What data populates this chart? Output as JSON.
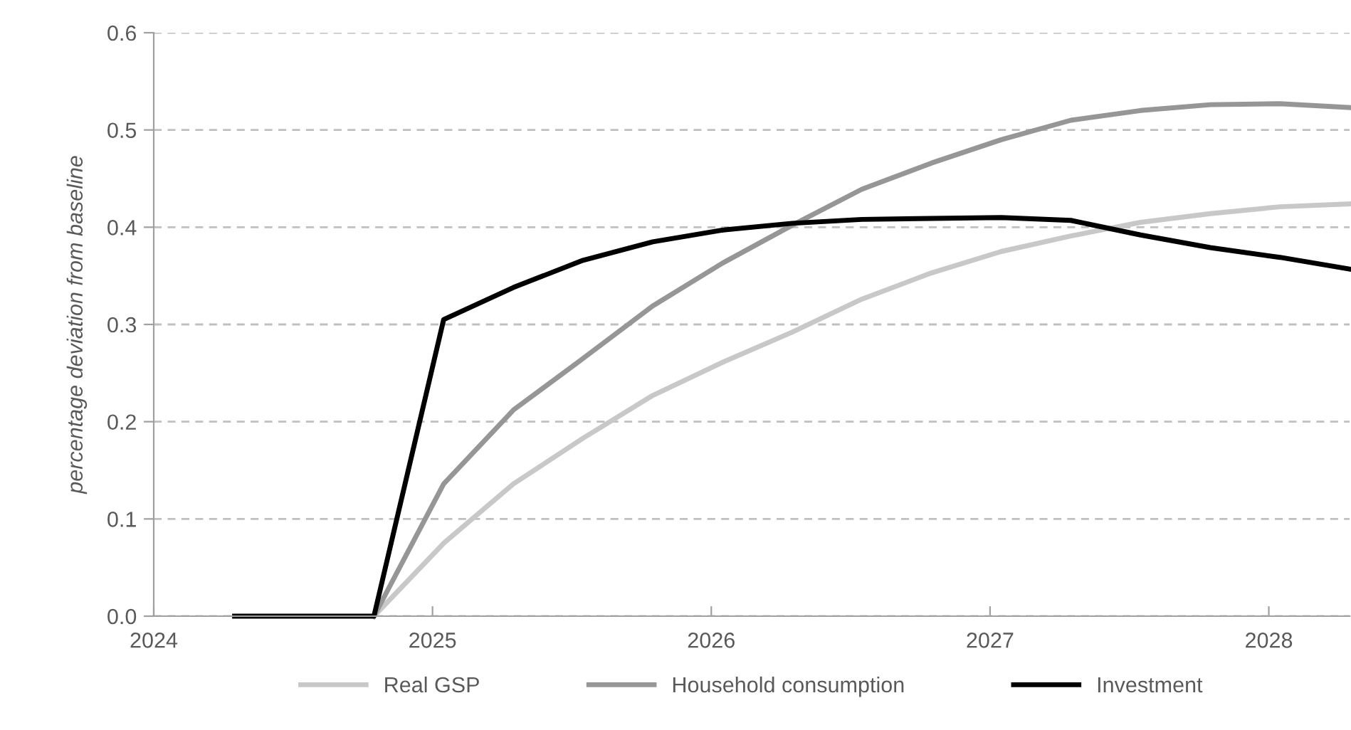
{
  "chart_data": {
    "type": "line",
    "ylabel": "percentage deviation from baseline",
    "x": [
      2024.29,
      2024.54,
      2024.79,
      2025.04,
      2025.29,
      2025.54,
      2025.79,
      2026.04,
      2026.29,
      2026.54,
      2026.79,
      2027.04,
      2027.29,
      2027.54,
      2027.79,
      2028.04,
      2028.29
    ],
    "series": [
      {
        "name": "Real GSP",
        "color": "#c8c8c8",
        "values": [
          null,
          null,
          0,
          0.075,
          0.136,
          0.183,
          0.227,
          0.261,
          0.292,
          0.326,
          0.353,
          0.375,
          0.391,
          0.405,
          0.414,
          0.421,
          0.424
        ]
      },
      {
        "name": "Household consumption",
        "color": "#969696",
        "values": [
          null,
          null,
          0,
          0.136,
          0.212,
          0.265,
          0.319,
          0.363,
          0.402,
          0.439,
          0.466,
          0.49,
          0.51,
          0.52,
          0.526,
          0.527,
          0.523
        ]
      },
      {
        "name": "Investment",
        "color": "#000000",
        "values": [
          0,
          0,
          0,
          0.305,
          0.338,
          0.366,
          0.385,
          0.397,
          0.404,
          0.408,
          0.409,
          0.41,
          0.407,
          0.392,
          0.379,
          0.369,
          0.357
        ]
      }
    ],
    "xlim": [
      2024,
      2028.29
    ],
    "xticks": [
      2024,
      2025,
      2026,
      2027,
      2028
    ],
    "ylim": [
      0,
      0.6
    ],
    "yticks": [
      {
        "value": 0,
        "label": "0.0"
      },
      {
        "value": 0.1,
        "label": "0.1"
      },
      {
        "value": 0.2,
        "label": "0.2"
      },
      {
        "value": 0.3,
        "label": "0.3"
      },
      {
        "value": 0.4,
        "label": "0.4"
      },
      {
        "value": 0.5,
        "label": "0.5"
      },
      {
        "value": 0.6,
        "label": "0.6"
      }
    ],
    "grid": "y",
    "legend": "bottom",
    "marker": "none",
    "line_style": "solid"
  }
}
